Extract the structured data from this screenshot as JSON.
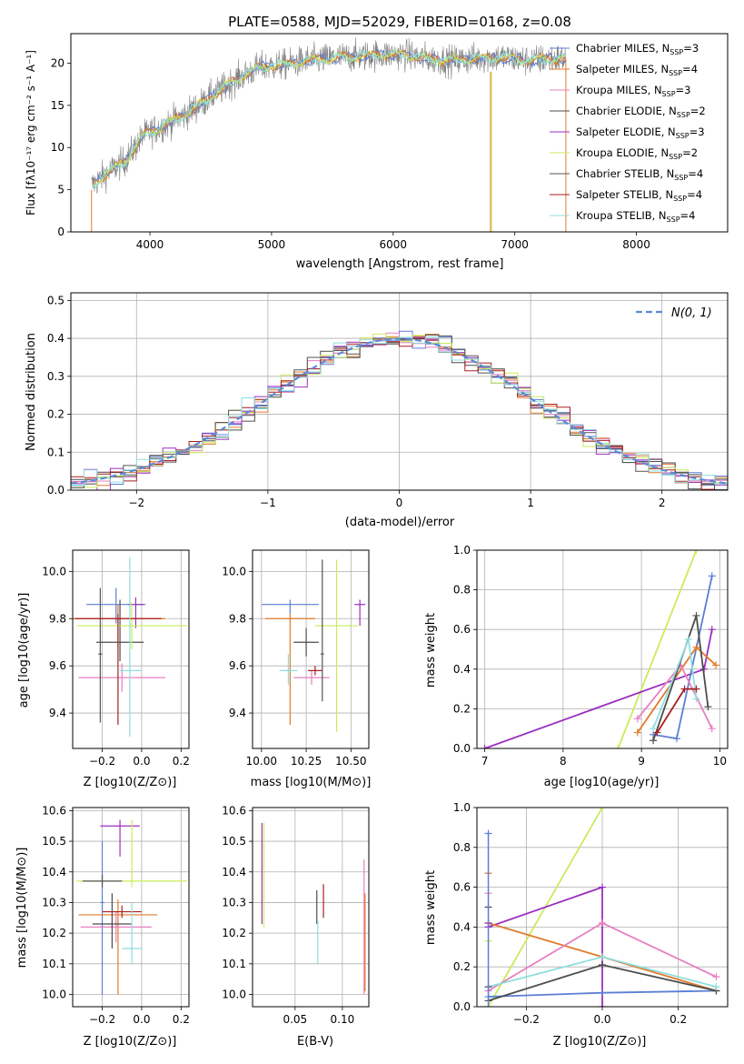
{
  "colors": [
    "#5b7fd5",
    "#e07a2a",
    "#e87fbf",
    "#4d4d4d",
    "#9a2fbf",
    "#c8ec5a",
    "#555555",
    "#a81e1e",
    "#8fdede"
  ],
  "chart_data": [
    {
      "id": "spectrum",
      "type": "line",
      "title": "PLATE=0588, MJD=52029, FIBERID=0168, z=0.08",
      "xlabel": "wavelength [Angstrom, rest frame]",
      "ylabel": "Flux [fλ10⁻¹⁷ erg cm⁻² s⁻¹ A⁻¹]",
      "xlim": [
        3350,
        8750
      ],
      "ylim": [
        0,
        23.5
      ],
      "xticks": [
        4000,
        5000,
        6000,
        7000,
        8000
      ],
      "yticks": [
        0,
        5,
        10,
        15,
        20
      ],
      "legend_position": "top-right",
      "legend": [
        {
          "label": "Chabrier MILES, N",
          "sub": "SSP",
          "suffix": "=3",
          "color": "#5b7fd5"
        },
        {
          "label": "Salpeter MILES, N",
          "sub": "SSP",
          "suffix": "=4",
          "color": "#e07a2a"
        },
        {
          "label": "Kroupa MILES, N",
          "sub": "SSP",
          "suffix": "=3",
          "color": "#e87fbf"
        },
        {
          "label": "Chabrier ELODIE, N",
          "sub": "SSP",
          "suffix": "=2",
          "color": "#4d4d4d"
        },
        {
          "label": "Salpeter ELODIE, N",
          "sub": "SSP",
          "suffix": "=3",
          "color": "#9a2fbf"
        },
        {
          "label": "Kroupa ELODIE, N",
          "sub": "SSP",
          "suffix": "=2",
          "color": "#c8ec5a"
        },
        {
          "label": "Chabrier STELIB, N",
          "sub": "SSP",
          "suffix": "=4",
          "color": "#555555"
        },
        {
          "label": "Salpeter STELIB, N",
          "sub": "SSP",
          "suffix": "=4",
          "color": "#a81e1e"
        },
        {
          "label": "Kroupa STELIB, N",
          "sub": "SSP",
          "suffix": "=4",
          "color": "#8fdede"
        }
      ],
      "continuum": [
        [
          3520,
          5.5
        ],
        [
          3650,
          7
        ],
        [
          3800,
          8.5
        ],
        [
          3950,
          11.5
        ],
        [
          4100,
          12.5
        ],
        [
          4300,
          14
        ],
        [
          4500,
          16
        ],
        [
          4700,
          18
        ],
        [
          4900,
          19.5
        ],
        [
          5100,
          19.8
        ],
        [
          5300,
          20.3
        ],
        [
          5500,
          20.6
        ],
        [
          5700,
          20.8
        ],
        [
          5900,
          21
        ],
        [
          6100,
          21
        ],
        [
          6300,
          20.5
        ],
        [
          6500,
          20.3
        ],
        [
          6700,
          20.6
        ],
        [
          6900,
          20.7
        ],
        [
          7100,
          20.3
        ],
        [
          7300,
          20.5
        ],
        [
          7420,
          20.6
        ]
      ]
    },
    {
      "id": "residuals",
      "type": "line",
      "xlabel": "(data-model)/error",
      "ylabel": "Normed distribution",
      "xlim": [
        -2.5,
        2.5
      ],
      "ylim": [
        0,
        0.52
      ],
      "xticks": [
        -2,
        -1,
        0,
        1,
        2
      ],
      "yticks": [
        0.0,
        0.1,
        0.2,
        0.3,
        0.4,
        0.5
      ],
      "legend_position": "top-right",
      "legend": [
        {
          "label": "N(0, 1)",
          "color": "#5b8ad6"
        }
      ]
    },
    {
      "id": "age-vs-z",
      "type": "scatter",
      "xlabel": "Z [log10(Z/Z⊙)]",
      "ylabel": "age [log10(age/yr)]",
      "xlim": [
        -0.35,
        0.24
      ],
      "ylim": [
        9.25,
        10.09
      ],
      "xticks": [
        -0.2,
        0.0,
        0.2
      ],
      "yticks": [
        9.4,
        9.6,
        9.8,
        10.0
      ],
      "points": [
        {
          "x": -0.13,
          "y": 9.86,
          "xerr": 0.15,
          "yerr_lo": 0.08,
          "yerr_hi": 0.07,
          "color": "#5b7fd5"
        },
        {
          "x": -0.12,
          "y": 9.8,
          "xerr": 0.24,
          "yerr_lo": 0.12,
          "yerr_hi": 0.06,
          "color": "#e07a2a"
        },
        {
          "x": -0.1,
          "y": 9.55,
          "xerr": 0.22,
          "yerr_lo": 0.06,
          "yerr_hi": 0.06,
          "color": "#e87fbf"
        },
        {
          "x": -0.11,
          "y": 9.7,
          "xerr": 0.12,
          "yerr_lo": 0.08,
          "yerr_hi": 0.18,
          "color": "#4d4d4d"
        },
        {
          "x": -0.03,
          "y": 9.86,
          "xerr": 0.04,
          "yerr_lo": 0.1,
          "yerr_hi": 0.03,
          "color": "#9a2fbf"
        },
        {
          "x": -0.05,
          "y": 9.77,
          "xerr": 0.28,
          "yerr_lo": 0.1,
          "yerr_hi": 0.1,
          "color": "#c8ec5a"
        },
        {
          "x": -0.21,
          "y": 9.65,
          "xerr": 0.01,
          "yerr_lo": 0.29,
          "yerr_hi": 0.28,
          "color": "#555555"
        },
        {
          "x": -0.12,
          "y": 9.8,
          "xerr": 0.22,
          "yerr_lo": 0.45,
          "yerr_hi": 0.02,
          "color": "#a81e1e"
        },
        {
          "x": -0.06,
          "y": 9.58,
          "xerr": 0.06,
          "yerr_lo": 0.28,
          "yerr_hi": 0.48,
          "color": "#8fdede"
        }
      ]
    },
    {
      "id": "age-vs-mass",
      "type": "scatter",
      "xlabel": "mass [log10(M/M⊙)]",
      "ylabel": "",
      "xlim": [
        9.95,
        10.6
      ],
      "ylim": [
        9.25,
        10.09
      ],
      "xticks": [
        10.0,
        10.25,
        10.5
      ],
      "yticks": [
        9.4,
        9.6,
        9.8,
        10.0
      ],
      "points": [
        {
          "x": 10.16,
          "y": 9.86,
          "xerr": 0.16,
          "yerr_lo": 0.04,
          "yerr_hi": 0.02,
          "color": "#5b7fd5"
        },
        {
          "x": 10.16,
          "y": 9.8,
          "xerr": 0.14,
          "yerr_lo": 0.45,
          "yerr_hi": 0.02,
          "color": "#e07a2a"
        },
        {
          "x": 10.28,
          "y": 9.55,
          "xerr": 0.1,
          "yerr_lo": 0.03,
          "yerr_hi": 0.03,
          "color": "#e87fbf"
        },
        {
          "x": 10.25,
          "y": 9.7,
          "xerr": 0.07,
          "yerr_lo": 0.06,
          "yerr_hi": 0.06,
          "color": "#4d4d4d"
        },
        {
          "x": 10.55,
          "y": 9.86,
          "xerr": 0.03,
          "yerr_lo": 0.09,
          "yerr_hi": 0.02,
          "color": "#9a2fbf"
        },
        {
          "x": 10.42,
          "y": 9.77,
          "xerr": 0.12,
          "yerr_lo": 0.45,
          "yerr_hi": 0.28,
          "color": "#c8ec5a"
        },
        {
          "x": 10.34,
          "y": 9.65,
          "xerr": 0.01,
          "yerr_lo": 0.2,
          "yerr_hi": 0.4,
          "color": "#555555"
        },
        {
          "x": 10.3,
          "y": 9.58,
          "xerr": 0.04,
          "yerr_lo": 0.02,
          "yerr_hi": 0.02,
          "color": "#a81e1e"
        },
        {
          "x": 10.15,
          "y": 9.58,
          "xerr": 0.05,
          "yerr_lo": 0.06,
          "yerr_hi": 0.07,
          "color": "#8fdede"
        }
      ]
    },
    {
      "id": "weight-vs-age",
      "type": "line",
      "xlabel": "age [log10(age/yr)]",
      "ylabel": "mass weight",
      "xlim": [
        6.9,
        10.1
      ],
      "ylim": [
        0,
        1.0
      ],
      "xticks": [
        7,
        8,
        9,
        10
      ],
      "yticks": [
        0.0,
        0.2,
        0.4,
        0.6,
        0.8,
        1.0
      ],
      "series": [
        {
          "color": "#c8ec5a",
          "x": [
            8.7,
            9.7
          ],
          "y": [
            0.0,
            1.0
          ]
        },
        {
          "color": "#9a2fbf",
          "x": [
            7.0,
            9.8,
            9.9
          ],
          "y": [
            0.0,
            0.4,
            0.6
          ]
        },
        {
          "color": "#5b7fd5",
          "x": [
            9.15,
            9.45,
            9.9
          ],
          "y": [
            0.07,
            0.05,
            0.87
          ]
        },
        {
          "color": "#e07a2a",
          "x": [
            8.95,
            9.7,
            9.95
          ],
          "y": [
            0.08,
            0.51,
            0.42
          ]
        },
        {
          "color": "#e87fbf",
          "x": [
            8.95,
            9.5,
            9.9
          ],
          "y": [
            0.15,
            0.42,
            0.1
          ]
        },
        {
          "color": "#4d4d4d",
          "x": [
            9.15,
            9.7,
            9.85
          ],
          "y": [
            0.04,
            0.67,
            0.21
          ]
        },
        {
          "color": "#8fdede",
          "x": [
            9.15,
            9.6,
            9.7
          ],
          "y": [
            0.1,
            0.55,
            0.25
          ]
        },
        {
          "color": "#a81e1e",
          "x": [
            9.2,
            9.55,
            9.7
          ],
          "y": [
            0.08,
            0.3,
            0.3
          ]
        }
      ]
    },
    {
      "id": "mass-vs-z",
      "type": "scatter",
      "xlabel": "Z [log10(Z/Z⊙)]",
      "ylabel": "mass [log10(M/M⊙)]",
      "xlim": [
        -0.35,
        0.24
      ],
      "ylim": [
        9.96,
        10.61
      ],
      "xticks": [
        -0.2,
        0.0,
        0.2
      ],
      "yticks": [
        10.0,
        10.1,
        10.2,
        10.3,
        10.4,
        10.5,
        10.6
      ],
      "points": [
        {
          "x": -0.2,
          "y": 10.3,
          "xerr": 0.01,
          "yerr_lo": 0.3,
          "yerr_hi": 0.2,
          "color": "#5b7fd5"
        },
        {
          "x": -0.12,
          "y": 10.26,
          "xerr": 0.2,
          "yerr_lo": 0.26,
          "yerr_hi": 0.05,
          "color": "#e07a2a"
        },
        {
          "x": -0.13,
          "y": 10.22,
          "xerr": 0.18,
          "yerr_lo": 0.05,
          "yerr_hi": 0.05,
          "color": "#e87fbf"
        },
        {
          "x": -0.15,
          "y": 10.23,
          "xerr": 0.1,
          "yerr_lo": 0.08,
          "yerr_hi": 0.1,
          "color": "#4d4d4d"
        },
        {
          "x": -0.11,
          "y": 10.55,
          "xerr": 0.1,
          "yerr_lo": 0.1,
          "yerr_hi": 0.02,
          "color": "#9a2fbf"
        },
        {
          "x": -0.05,
          "y": 10.37,
          "xerr": 0.28,
          "yerr_lo": 0.02,
          "yerr_hi": 0.2,
          "color": "#c8ec5a"
        },
        {
          "x": -0.2,
          "y": 10.37,
          "xerr": 0.1,
          "yerr_lo": 0.02,
          "yerr_hi": 0.02,
          "color": "#555555"
        },
        {
          "x": -0.1,
          "y": 10.27,
          "xerr": 0.1,
          "yerr_lo": 0.02,
          "yerr_hi": 0.02,
          "color": "#a81e1e"
        },
        {
          "x": -0.05,
          "y": 10.15,
          "xerr": 0.05,
          "yerr_lo": 0.05,
          "yerr_hi": 0.15,
          "color": "#8fdede"
        }
      ]
    },
    {
      "id": "mass-vs-ebv",
      "type": "scatter",
      "xlabel": "E(B-V)",
      "ylabel": "",
      "xlim": [
        0.005,
        0.128
      ],
      "ylim": [
        9.96,
        10.61
      ],
      "xticks": [
        0.05,
        0.1
      ],
      "yticks": [
        10.0,
        10.1,
        10.2,
        10.3,
        10.4,
        10.5,
        10.6
      ],
      "points": [
        {
          "x": 0.123,
          "y": 10.2,
          "xerr": 0,
          "yerr_lo": 0.2,
          "yerr_hi": 0.24,
          "color": "#e87fbf"
        },
        {
          "x": 0.124,
          "y": 10.15,
          "xerr": 0,
          "yerr_lo": 0.14,
          "yerr_hi": 0.18,
          "color": "#e07a2a"
        },
        {
          "x": 0.017,
          "y": 10.4,
          "xerr": 0,
          "yerr_lo": 0.18,
          "yerr_hi": 0.16,
          "color": "#c8ec5a"
        },
        {
          "x": 0.015,
          "y": 10.42,
          "xerr": 0,
          "yerr_lo": 0.19,
          "yerr_hi": 0.14,
          "color": "#9a2fbf"
        },
        {
          "x": 0.073,
          "y": 10.28,
          "xerr": 0,
          "yerr_lo": 0.05,
          "yerr_hi": 0.06,
          "color": "#4d4d4d"
        },
        {
          "x": 0.08,
          "y": 10.3,
          "xerr": 0,
          "yerr_lo": 0.05,
          "yerr_hi": 0.06,
          "color": "#a81e1e"
        },
        {
          "x": 0.074,
          "y": 10.18,
          "xerr": 0,
          "yerr_lo": 0.08,
          "yerr_hi": 0.06,
          "color": "#8fdede"
        }
      ]
    },
    {
      "id": "weight-vs-z",
      "type": "line",
      "xlabel": "Z [log10(Z/Z⊙)]",
      "ylabel": "mass weight",
      "xlim": [
        -0.33,
        0.33
      ],
      "ylim": [
        0,
        1.0
      ],
      "xticks": [
        -0.2,
        0.0,
        0.2
      ],
      "yticks": [
        0.0,
        0.2,
        0.4,
        0.6,
        0.8,
        1.0
      ],
      "series": [
        {
          "color": "#c8ec5a",
          "x": [
            -0.3,
            0.0
          ],
          "y": [
            0.0,
            1.0
          ]
        },
        {
          "color": "#9a2fbf",
          "x": [
            -0.3,
            0.0,
            0.0
          ],
          "y": [
            0.4,
            0.6,
            0.0
          ]
        },
        {
          "color": "#5b7fd5",
          "x": [
            -0.3,
            0.0,
            0.3
          ],
          "y": [
            0.05,
            0.07,
            0.08
          ]
        },
        {
          "color": "#e07a2a",
          "x": [
            -0.3,
            0.0,
            0.3
          ],
          "y": [
            0.42,
            0.25,
            0.08
          ]
        },
        {
          "color": "#e87fbf",
          "x": [
            -0.3,
            0.0,
            0.3
          ],
          "y": [
            0.08,
            0.42,
            0.15
          ]
        },
        {
          "color": "#4d4d4d",
          "x": [
            -0.3,
            0.0,
            0.3
          ],
          "y": [
            0.03,
            0.21,
            0.08
          ]
        },
        {
          "color": "#8fdede",
          "x": [
            -0.3,
            0.0,
            0.3
          ],
          "y": [
            0.1,
            0.25,
            0.1
          ]
        }
      ],
      "markers_left": [
        0.87,
        0.67,
        0.57,
        0.5,
        0.42,
        0.33,
        0.1
      ]
    }
  ]
}
